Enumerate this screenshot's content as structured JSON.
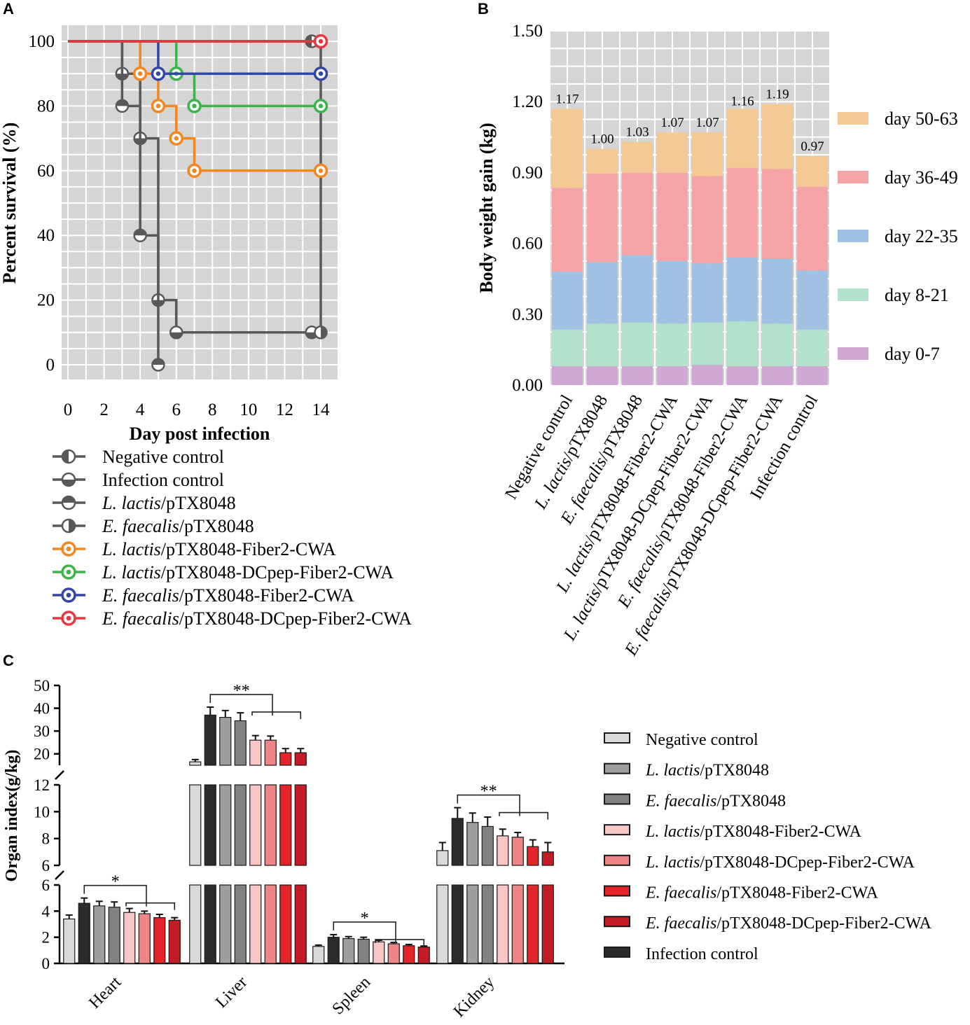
{
  "chart_data": [
    {
      "panel": "A",
      "type": "line",
      "subtype": "kaplan-meier-step",
      "title": "",
      "xlabel": "Day post infection",
      "ylabel": "Percent survival (%)",
      "xlim": [
        0,
        14
      ],
      "ylim": [
        0,
        100
      ],
      "xticks": [
        0,
        2,
        4,
        6,
        8,
        10,
        12,
        14
      ],
      "yticks": [
        0,
        20,
        40,
        60,
        80,
        100
      ],
      "grid": true,
      "series": [
        {
          "name": "Negative control",
          "label_italic": "",
          "label_rest": "Negative control",
          "color": "#58585a",
          "marker": "half-left",
          "points": [
            [
              0,
              100
            ],
            [
              13.5,
              100
            ]
          ]
        },
        {
          "name": "Infection control",
          "label_italic": "",
          "label_rest": "Infection control",
          "color": "#58585a",
          "marker": "half-bottom",
          "points": [
            [
              0,
              100
            ],
            [
              3,
              100
            ],
            [
              3,
              90
            ],
            [
              4,
              90
            ],
            [
              4,
              70
            ],
            [
              5,
              70
            ],
            [
              5,
              20
            ],
            [
              6,
              20
            ],
            [
              6,
              10
            ],
            [
              13.5,
              10
            ]
          ]
        },
        {
          "name": "L. lactis/pTX8048",
          "label_italic": "L. lactis",
          "label_rest": "/pTX8048",
          "color": "#58585a",
          "marker": "half-top",
          "points": [
            [
              0,
              100
            ],
            [
              3,
              100
            ],
            [
              3,
              80
            ],
            [
              4,
              80
            ],
            [
              4,
              40
            ],
            [
              5,
              40
            ],
            [
              5,
              0
            ]
          ]
        },
        {
          "name": "E. faecalis/pTX8048",
          "label_italic": "E. faecalis",
          "label_rest": "/pTX8048",
          "color": "#58585a",
          "marker": "half-right",
          "points": [
            [
              0,
              100
            ],
            [
              14,
              100
            ],
            [
              14,
              10
            ]
          ]
        },
        {
          "name": "L. lactis/pTX8048-Fiber2-CWA",
          "label_italic": "L. lactis",
          "label_rest": "/pTX8048-Fiber2-CWA",
          "color": "#f2871f",
          "marker": "ring",
          "points": [
            [
              0,
              100
            ],
            [
              4,
              100
            ],
            [
              4,
              90
            ],
            [
              5,
              90
            ],
            [
              5,
              80
            ],
            [
              6,
              80
            ],
            [
              6,
              70
            ],
            [
              7,
              70
            ],
            [
              7,
              60
            ],
            [
              14,
              60
            ]
          ]
        },
        {
          "name": "L. lactis/pTX8048-DCpep-Fiber2-CWA",
          "label_italic": "L. lactis",
          "label_rest": "/pTX8048-DCpep-Fiber2-CWA",
          "color": "#3db449",
          "marker": "ring",
          "points": [
            [
              0,
              100
            ],
            [
              6,
              100
            ],
            [
              6,
              90
            ],
            [
              7,
              90
            ],
            [
              7,
              80
            ],
            [
              14,
              80
            ]
          ]
        },
        {
          "name": "E. faecalis/pTX8048-Fiber2-CWA",
          "label_italic": "E. faecalis",
          "label_rest": "/pTX8048-Fiber2-CWA",
          "color": "#3346a5",
          "marker": "ring",
          "points": [
            [
              0,
              100
            ],
            [
              5,
              100
            ],
            [
              5,
              90
            ],
            [
              14,
              90
            ]
          ]
        },
        {
          "name": "E. faecalis/pTX8048-DCpep-Fiber2-CWA",
          "label_italic": "E. faecalis",
          "label_rest": "/pTX8048-DCpep-Fiber2-CWA",
          "color": "#e8373e",
          "marker": "ring",
          "points": [
            [
              0,
              100
            ],
            [
              14,
              100
            ]
          ]
        }
      ]
    },
    {
      "panel": "B",
      "type": "bar",
      "subtype": "stacked",
      "title": "",
      "xlabel": "",
      "ylabel": "Body weight gain (kg)",
      "ylim": [
        0,
        1.5
      ],
      "yticks": [
        "0.00",
        "0.30",
        "0.60",
        "0.90",
        "1.20",
        "1.50"
      ],
      "grid": true,
      "legend_position": "right",
      "categories": [
        {
          "label": "Negative control",
          "italic": "",
          "rest": "Negative control"
        },
        {
          "label": "L. lactis/pTX8048",
          "italic": "L. lactis",
          "rest": "/pTX8048"
        },
        {
          "label": "E. faecalis/pTX8048",
          "italic": "E. faecalis",
          "rest": "/pTX8048"
        },
        {
          "label": "L. lactis/pTX8048-Fiber2-CWA",
          "italic": "L. lactis",
          "rest": "/pTX8048-Fiber2-CWA"
        },
        {
          "label": "L. lactis/pTX8048-DCpep-Fiber2-CWA",
          "italic": "L. lactis",
          "rest": "/pTX8048-DCpep-Fiber2-CWA"
        },
        {
          "label": "E. faecalis/pTX8048-Fiber2-CWA",
          "italic": "E. faecalis",
          "rest": "/pTX8048-Fiber2-CWA"
        },
        {
          "label": "E. faecalis/pTX8048-DCpep-Fiber2-CWA",
          "italic": "E. faecalis",
          "rest": "/pTX8048-DCpep-Fiber2-CWA"
        },
        {
          "label": "Infection control",
          "italic": "",
          "rest": "Infection control"
        }
      ],
      "series": [
        {
          "name": "day 0-7",
          "color": "#cfa9d3",
          "values": [
            0.08,
            0.08,
            0.08,
            0.08,
            0.085,
            0.08,
            0.08,
            0.08
          ]
        },
        {
          "name": "day 8-21",
          "color": "#b3e2cc",
          "values": [
            0.155,
            0.18,
            0.185,
            0.18,
            0.18,
            0.19,
            0.18,
            0.155
          ]
        },
        {
          "name": "day 22-35",
          "color": "#9fc1e3",
          "values": [
            0.245,
            0.26,
            0.285,
            0.265,
            0.25,
            0.27,
            0.275,
            0.25
          ]
        },
        {
          "name": "day 36-49",
          "color": "#f4a4a6",
          "values": [
            0.355,
            0.375,
            0.35,
            0.375,
            0.37,
            0.38,
            0.38,
            0.355
          ]
        },
        {
          "name": "day 50-63",
          "color": "#f5c994",
          "values": [
            0.335,
            0.105,
            0.13,
            0.17,
            0.185,
            0.25,
            0.275,
            0.13
          ]
        }
      ],
      "totals": [
        "1.17",
        "1.00",
        "1.03",
        "1.07",
        "1.07",
        "1.16",
        "1.19",
        "0.97"
      ]
    },
    {
      "panel": "C",
      "type": "bar",
      "subtype": "grouped-broken-axis",
      "title": "",
      "xlabel": "",
      "ylabel": "Organ index(g/kg)",
      "segments": [
        {
          "range": [
            0,
            6
          ],
          "ticks": [
            0,
            2,
            4,
            6
          ]
        },
        {
          "range": [
            6,
            12
          ],
          "ticks": [
            6,
            8,
            10,
            12
          ]
        },
        {
          "range": [
            15,
            50
          ],
          "ticks": [
            20,
            30,
            40,
            50
          ]
        }
      ],
      "categories": [
        "Heart",
        "Liver",
        "Spleen",
        "Kidney"
      ],
      "series": [
        {
          "name": "Negative control",
          "italic": "",
          "rest": "Negative control",
          "color": "#d9d9d9",
          "values": [
            3.4,
            16.5,
            1.3,
            7.1
          ],
          "errors": [
            0.3,
            1.0,
            0.1,
            0.6
          ]
        },
        {
          "name": "Infection control",
          "italic": "",
          "rest": "Infection control",
          "color": "#2b2b2b",
          "values": [
            4.6,
            37.0,
            2.0,
            9.5
          ],
          "errors": [
            0.4,
            3.5,
            0.2,
            0.8
          ]
        },
        {
          "name": "L. lactis/pTX8048",
          "italic": "L. lactis",
          "rest": "/pTX8048",
          "color": "#9e9e9e",
          "values": [
            4.4,
            36.0,
            1.9,
            9.2
          ],
          "errors": [
            0.35,
            3.0,
            0.15,
            0.7
          ]
        },
        {
          "name": "E. faecalis/pTX8048",
          "italic": "E. faecalis",
          "rest": "/pTX8048",
          "color": "#828282",
          "values": [
            4.3,
            34.5,
            1.85,
            8.9
          ],
          "errors": [
            0.4,
            3.5,
            0.15,
            0.7
          ]
        },
        {
          "name": "L. lactis/pTX8048-Fiber2-CWA",
          "italic": "L. lactis",
          "rest": "/pTX8048-Fiber2-CWA",
          "color": "#f8c6c4",
          "values": [
            3.9,
            26.0,
            1.65,
            8.2
          ],
          "errors": [
            0.3,
            2.0,
            0.12,
            0.5
          ]
        },
        {
          "name": "L. lactis/pTX8048-DCpep-Fiber2-CWA",
          "italic": "L. lactis",
          "rest": "/pTX8048-DCpep-Fiber2-CWA",
          "color": "#ee8587",
          "values": [
            3.8,
            26.0,
            1.5,
            8.1
          ],
          "errors": [
            0.2,
            1.8,
            0.1,
            0.35
          ]
        },
        {
          "name": "E. faecalis/pTX8048-Fiber2-CWA",
          "italic": "E. faecalis",
          "rest": "/pTX8048-Fiber2-CWA",
          "color": "#e32428",
          "values": [
            3.5,
            20.5,
            1.35,
            7.4
          ],
          "errors": [
            0.25,
            1.8,
            0.1,
            0.5
          ]
        },
        {
          "name": "E. faecalis/pTX8048-DCpep-Fiber2-CWA",
          "italic": "E. faecalis",
          "rest": "/pTX8048-DCpep-Fiber2-CWA",
          "color": "#c21c24",
          "values": [
            3.3,
            20.5,
            1.25,
            7.0
          ],
          "errors": [
            0.2,
            1.8,
            0.08,
            0.7
          ]
        }
      ],
      "legend_order": [
        0,
        2,
        3,
        4,
        5,
        6,
        7,
        1
      ],
      "significance": [
        "*",
        "**",
        "*",
        "**"
      ]
    }
  ],
  "panel_labels": [
    "A",
    "B",
    "C"
  ]
}
